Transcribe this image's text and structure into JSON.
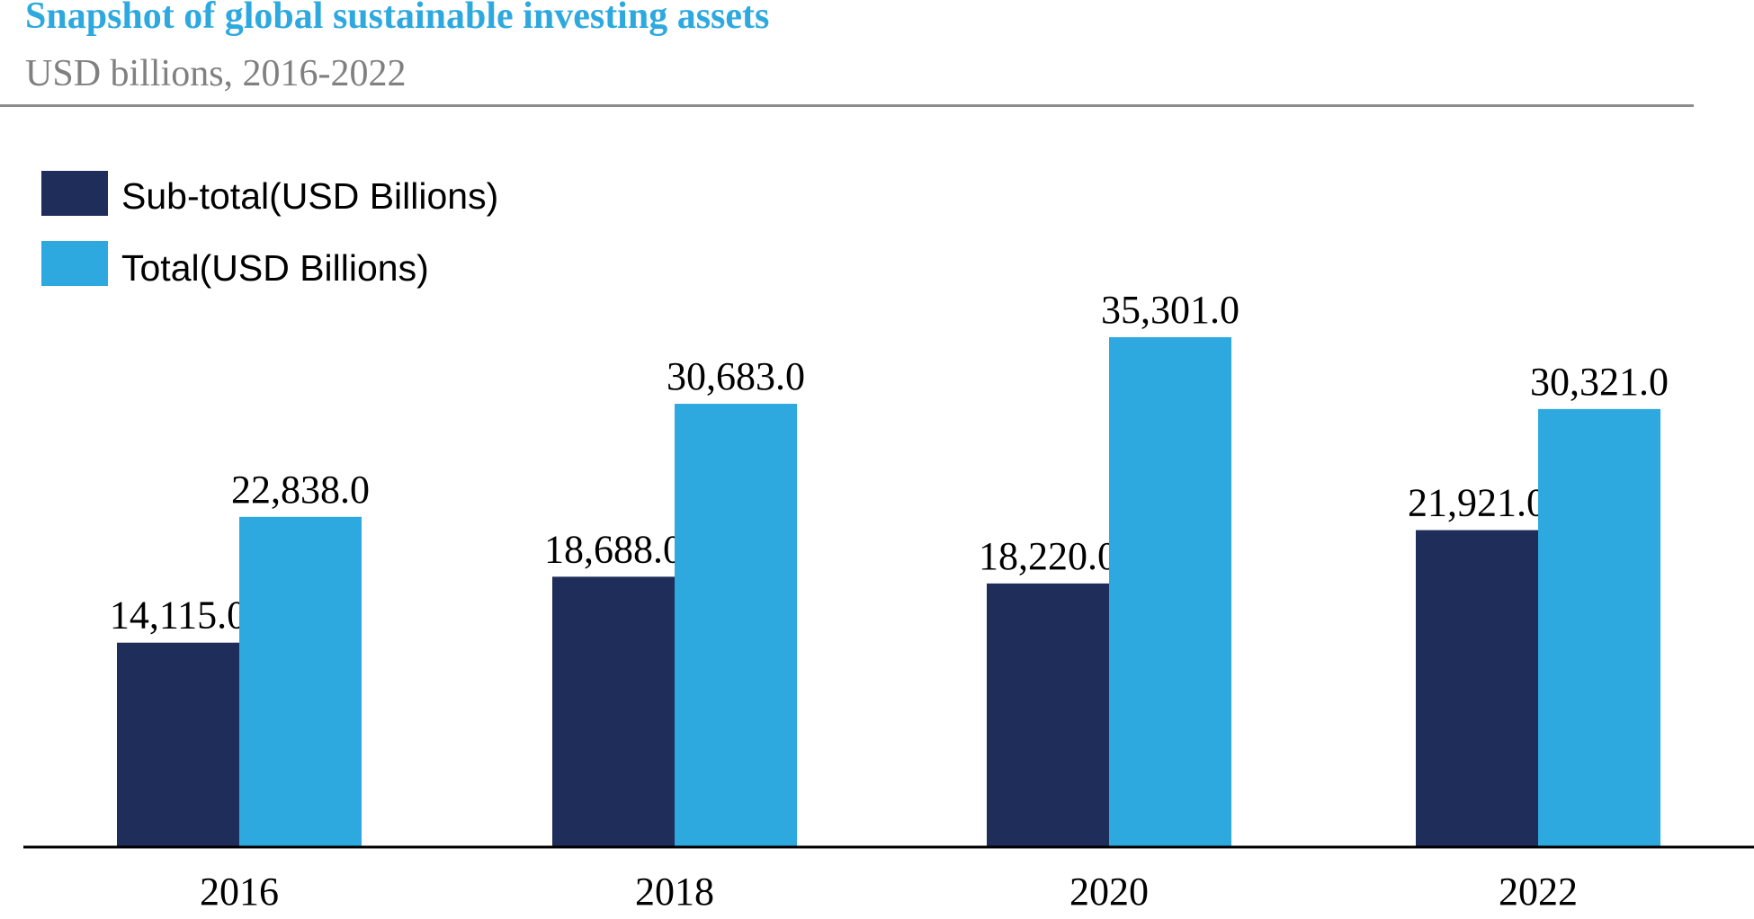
{
  "header": {
    "title": "Snapshot of global sustainable investing assets",
    "subtitle": "USD billions, 2016-2022"
  },
  "colors": {
    "title": "#2ea9df",
    "subtitle": "#808080",
    "sub_total": "#1f2d5a",
    "total": "#2ea9df"
  },
  "chart_data": {
    "type": "bar",
    "title": "Snapshot of global sustainable investing assets",
    "subtitle": "USD billions, 2016-2022",
    "categories": [
      "2016",
      "2018",
      "2020",
      "2022"
    ],
    "series": [
      {
        "name": "Sub-total(USD Billions)",
        "values": [
          14115.0,
          18688.0,
          18220.0,
          21921.0
        ],
        "labels": [
          "14,115.0",
          "18,688.0",
          "18,220.0",
          "21,921.0"
        ]
      },
      {
        "name": "Total(USD Billions)",
        "values": [
          22838.0,
          30683.0,
          35301.0,
          30321.0
        ],
        "labels": [
          "22,838.0",
          "30,683.0",
          "35,301.0",
          "30,321.0"
        ]
      }
    ],
    "ylim": [
      0,
      35301
    ],
    "grid": false,
    "legend_position": "top-left",
    "xlabel": "",
    "ylabel": ""
  }
}
